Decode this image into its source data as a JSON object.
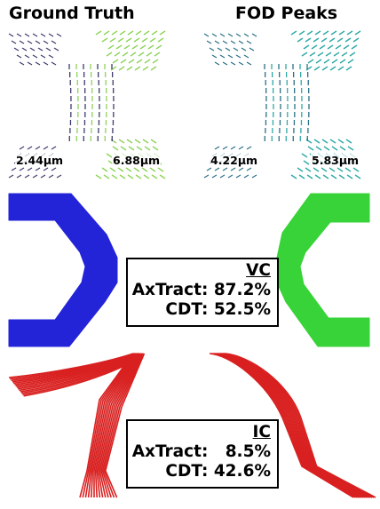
{
  "titles": {
    "left": "Ground Truth",
    "right": "FOD Peaks"
  },
  "measurements": {
    "gt_left": "2.44µm",
    "gt_right": "6.88µm",
    "fod_left": "4.22µm",
    "fod_right": "5.83µm"
  },
  "vc_box": {
    "heading": "VC",
    "axtract_label": "AxTract:",
    "axtract_value": "87.2%",
    "cdt_label": "CDT:",
    "cdt_value": "52.5%"
  },
  "ic_box": {
    "heading": "IC",
    "axtract_label": "AxTract:",
    "axtract_value": "8.5%",
    "cdt_label": "CDT:",
    "cdt_value": "42.6%"
  },
  "colors": {
    "gt_small": "#3b3b6e",
    "gt_large": "#8fd35a",
    "fod_small": "#2a6f86",
    "fod_large": "#2fa8a6",
    "vc_left": "#2323d8",
    "vc_right": "#38d338",
    "ic": "#d92020"
  }
}
